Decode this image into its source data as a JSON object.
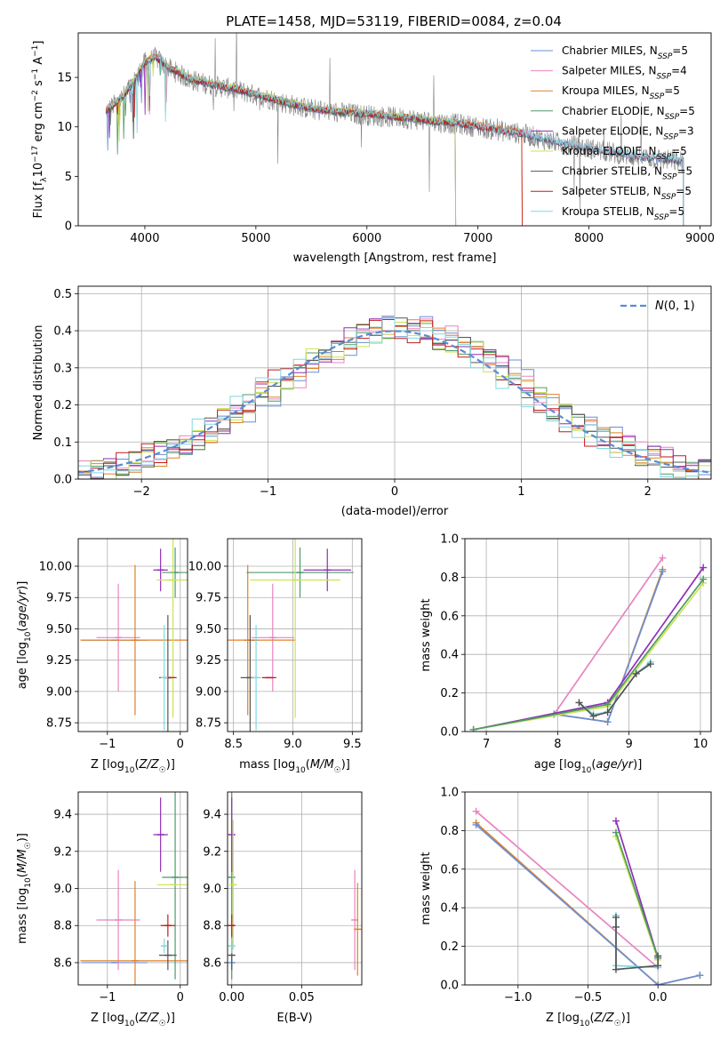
{
  "figure_title": "PLATE=1458, MJD=53119, FIBERID=0084, z=0.04",
  "colors": {
    "chabrier_miles": "#6a8fd6",
    "salpeter_miles": "#e884c0",
    "kroupa_miles": "#e0822a",
    "chabrier_elodie": "#4f9a68",
    "salpeter_elodie": "#8f2fb6",
    "kroupa_elodie": "#c9e451",
    "chabrier_stelib": "#555555",
    "salpeter_stelib": "#c21a1a",
    "kroupa_stelib": "#7fd8e0",
    "data_spectrum": "#808080",
    "normal_curve": "#5b8bd6",
    "grid": "#b0b0b0"
  },
  "legend_models": [
    {
      "key": "chabrier_miles",
      "label": "Chabrier MILES, N",
      "sub": "SSP",
      "suffix": "=5"
    },
    {
      "key": "salpeter_miles",
      "label": "Salpeter MILES, N",
      "sub": "SSP",
      "suffix": "=4"
    },
    {
      "key": "kroupa_miles",
      "label": "Kroupa MILES, N",
      "sub": "SSP",
      "suffix": "=5"
    },
    {
      "key": "chabrier_elodie",
      "label": "Chabrier ELODIE, N",
      "sub": "SSP",
      "suffix": "=5"
    },
    {
      "key": "salpeter_elodie",
      "label": "Salpeter ELODIE, N",
      "sub": "SSP",
      "suffix": "=3"
    },
    {
      "key": "kroupa_elodie",
      "label": "Kroupa ELODIE, N",
      "sub": "SSP",
      "suffix": "=5"
    },
    {
      "key": "chabrier_stelib",
      "label": "Chabrier STELIB, N",
      "sub": "SSP",
      "suffix": "=5"
    },
    {
      "key": "salpeter_stelib",
      "label": "Salpeter STELIB, N",
      "sub": "SSP",
      "suffix": "=5"
    },
    {
      "key": "kroupa_stelib",
      "label": "Kroupa STELIB, N",
      "sub": "SSP",
      "suffix": "=5"
    }
  ],
  "chart_data": [
    {
      "id": "spectrum",
      "type": "line",
      "title": "PLATE=1458, MJD=53119, FIBERID=0084, z=0.04",
      "xlabel": "wavelength [Angstrom, rest frame]",
      "ylabel": "Flux [fλ10⁻¹⁷ erg cm⁻² s⁻¹ A⁻¹]",
      "xlim": [
        3400,
        9100
      ],
      "ylim": [
        0,
        19.5
      ],
      "xticks": [
        4000,
        5000,
        6000,
        7000,
        8000,
        9000
      ],
      "yticks": [
        0,
        5,
        10,
        15
      ],
      "grid": false,
      "legend_position": "top-right",
      "continuum": {
        "x": [
          3650,
          3800,
          3900,
          4000,
          4100,
          4200,
          4400,
          4600,
          4800,
          5000,
          5200,
          5400,
          5600,
          5800,
          6000,
          6200,
          6400,
          6600,
          6800,
          7000,
          7200,
          7400,
          7600,
          7800,
          8000,
          8200,
          8400,
          8600,
          8800
        ],
        "y": [
          11.5,
          13.0,
          14.5,
          16.5,
          17.0,
          16.0,
          14.8,
          14.2,
          13.8,
          13.2,
          12.6,
          12.0,
          11.6,
          11.4,
          11.2,
          11.0,
          10.8,
          10.5,
          10.3,
          10.0,
          9.6,
          9.3,
          8.7,
          8.2,
          7.8,
          7.4,
          7.0,
          6.8,
          6.5
        ]
      },
      "model_end_wavelengths": {
        "kroupa_elodie": 6800,
        "salpeter_stelib": 7400,
        "kroupa_miles": 7400,
        "chabrier_miles": 8850,
        "kroupa_stelib": 8850
      }
    },
    {
      "id": "residuals",
      "type": "histogram",
      "xlabel": "(data-model)/error",
      "ylabel": "Normed distribution",
      "xlim": [
        -2.5,
        2.5
      ],
      "ylim": [
        0,
        0.52
      ],
      "xticks": [
        -2,
        -1,
        0,
        1,
        2
      ],
      "yticks": [
        0.0,
        0.1,
        0.2,
        0.3,
        0.4,
        0.5
      ],
      "grid": true,
      "legend_position": "top-right",
      "legend_label": "N(0, 1)",
      "bin_width": 0.1
    },
    {
      "id": "age_vs_z",
      "type": "scatter",
      "xlabel": "Z [log10(Z/Z☉)]",
      "ylabel": "age [log10(age/yr)]",
      "xlim": [
        -1.4,
        0.1
      ],
      "ylim": [
        8.68,
        10.22
      ],
      "xticks": [
        -1,
        0
      ],
      "yticks": [
        8.75,
        9.0,
        9.25,
        9.5,
        9.75,
        10.0
      ],
      "grid": true,
      "points": [
        {
          "model": "chabrier_miles",
          "x": -0.9,
          "xerr": 0.45,
          "y": 9.41,
          "yerr": 0.0
        },
        {
          "model": "salpeter_miles",
          "x": -0.85,
          "xerr": 0.3,
          "y": 9.43,
          "yerr": 0.43
        },
        {
          "model": "kroupa_miles",
          "x": -0.62,
          "xerr": 0.75,
          "y": 9.41,
          "yerr": 0.6
        },
        {
          "model": "chabrier_elodie",
          "x": -0.07,
          "xerr": 0.18,
          "y": 9.95,
          "yerr": 0.2
        },
        {
          "model": "salpeter_elodie",
          "x": -0.27,
          "xerr": 0.1,
          "y": 9.97,
          "yerr": 0.17
        },
        {
          "model": "kroupa_elodie",
          "x": -0.1,
          "xerr": 0.22,
          "y": 9.89,
          "yerr": 1.1
        },
        {
          "model": "chabrier_stelib",
          "x": -0.17,
          "xerr": 0.12,
          "y": 9.11,
          "yerr": 0.5
        },
        {
          "model": "salpeter_stelib",
          "x": -0.17,
          "xerr": 0.1,
          "y": 9.11,
          "yerr": 0.0
        },
        {
          "model": "kroupa_stelib",
          "x": -0.22,
          "xerr": 0.04,
          "y": 9.11,
          "yerr": 0.42
        }
      ]
    },
    {
      "id": "age_vs_mass",
      "type": "scatter",
      "xlabel": "mass [log10(M/M☉)]",
      "xlim": [
        8.45,
        9.58
      ],
      "ylim": [
        8.68,
        10.22
      ],
      "xticks": [
        8.5,
        9.0,
        9.5
      ],
      "yticks": [
        8.75,
        9.0,
        9.25,
        9.5,
        9.75,
        10.0
      ],
      "grid": true,
      "points": [
        {
          "model": "chabrier_miles",
          "x": 8.65,
          "xerr": 0.06,
          "y": 9.41,
          "yerr": 0.0
        },
        {
          "model": "salpeter_miles",
          "x": 8.83,
          "xerr": 0.18,
          "y": 9.43,
          "yerr": 0.43
        },
        {
          "model": "kroupa_miles",
          "x": 8.62,
          "xerr": 0.4,
          "y": 9.41,
          "yerr": 0.6
        },
        {
          "model": "chabrier_elodie",
          "x": 9.06,
          "xerr": 0.45,
          "y": 9.95,
          "yerr": 0.2
        },
        {
          "model": "salpeter_elodie",
          "x": 9.29,
          "xerr": 0.2,
          "y": 9.97,
          "yerr": 0.17
        },
        {
          "model": "kroupa_elodie",
          "x": 9.02,
          "xerr": 0.38,
          "y": 9.89,
          "yerr": 1.1
        },
        {
          "model": "chabrier_stelib",
          "x": 8.64,
          "xerr": 0.08,
          "y": 9.11,
          "yerr": 0.5
        },
        {
          "model": "salpeter_stelib",
          "x": 8.8,
          "xerr": 0.06,
          "y": 9.11,
          "yerr": 0.0
        },
        {
          "model": "kroupa_stelib",
          "x": 8.69,
          "xerr": 0.04,
          "y": 9.11,
          "yerr": 0.42
        }
      ]
    },
    {
      "id": "mass_weight_vs_age",
      "type": "line",
      "xlabel": "age [log10(age/yr)]",
      "ylabel": "mass weight",
      "xlim": [
        6.7,
        10.15
      ],
      "ylim": [
        0,
        1.0
      ],
      "xticks": [
        7,
        8,
        9,
        10
      ],
      "yticks": [
        0.0,
        0.2,
        0.4,
        0.6,
        0.8,
        1.0
      ],
      "grid": true,
      "series": [
        {
          "model": "salpeter_miles",
          "x": [
            7.95,
            9.47
          ],
          "y": [
            0.09,
            0.9
          ]
        },
        {
          "model": "kroupa_miles",
          "x": [
            7.95,
            8.7,
            9.47
          ],
          "y": [
            0.09,
            0.05,
            0.84
          ]
        },
        {
          "model": "chabrier_miles",
          "x": [
            7.95,
            8.7,
            9.47
          ],
          "y": [
            0.09,
            0.05,
            0.83
          ]
        },
        {
          "model": "salpeter_elodie",
          "x": [
            6.82,
            8.7,
            10.04
          ],
          "y": [
            0.01,
            0.15,
            0.85
          ]
        },
        {
          "model": "kroupa_elodie",
          "x": [
            6.82,
            8.7,
            10.04
          ],
          "y": [
            0.01,
            0.13,
            0.77
          ]
        },
        {
          "model": "chabrier_elodie",
          "x": [
            6.82,
            8.7,
            10.04
          ],
          "y": [
            0.01,
            0.14,
            0.79
          ]
        },
        {
          "model": "kroupa_stelib",
          "x": [
            8.3,
            8.5,
            8.7,
            9.1,
            9.3
          ],
          "y": [
            0.15,
            0.09,
            0.1,
            0.3,
            0.36
          ]
        },
        {
          "model": "chabrier_stelib",
          "x": [
            8.3,
            8.5,
            8.7,
            9.1,
            9.3
          ],
          "y": [
            0.15,
            0.08,
            0.1,
            0.3,
            0.35
          ]
        }
      ]
    },
    {
      "id": "mass_vs_z",
      "type": "scatter",
      "xlabel": "Z [log10(Z/Z☉)]",
      "ylabel": "mass [log10(M/M☉)]",
      "xlim": [
        -1.4,
        0.1
      ],
      "ylim": [
        8.48,
        9.52
      ],
      "xticks": [
        -1,
        0
      ],
      "yticks": [
        8.6,
        8.8,
        9.0,
        9.2,
        9.4
      ],
      "grid": true,
      "points": [
        {
          "model": "chabrier_miles",
          "x": -0.9,
          "xerr": 0.45,
          "y": 8.6,
          "yerr": 0.0
        },
        {
          "model": "salpeter_miles",
          "x": -0.85,
          "xerr": 0.3,
          "y": 8.83,
          "yerr": 0.27
        },
        {
          "model": "kroupa_miles",
          "x": -0.62,
          "xerr": 0.75,
          "y": 8.61,
          "yerr": 0.43
        },
        {
          "model": "chabrier_elodie",
          "x": -0.07,
          "xerr": 0.18,
          "y": 9.06,
          "yerr": 0.55
        },
        {
          "model": "salpeter_elodie",
          "x": -0.27,
          "xerr": 0.1,
          "y": 9.29,
          "yerr": 0.2
        },
        {
          "model": "kroupa_elodie",
          "x": -0.1,
          "xerr": 0.22,
          "y": 9.02,
          "yerr": 0.0
        },
        {
          "model": "chabrier_stelib",
          "x": -0.17,
          "xerr": 0.12,
          "y": 8.64,
          "yerr": 0.08
        },
        {
          "model": "salpeter_stelib",
          "x": -0.17,
          "xerr": 0.1,
          "y": 8.8,
          "yerr": 0.06
        },
        {
          "model": "kroupa_stelib",
          "x": -0.22,
          "xerr": 0.04,
          "y": 8.69,
          "yerr": 0.04
        }
      ]
    },
    {
      "id": "mass_vs_ebv",
      "type": "scatter",
      "xlabel": "E(B-V)",
      "xlim": [
        -0.003,
        0.093
      ],
      "ylim": [
        8.48,
        9.52
      ],
      "xticks": [
        0.0,
        0.05
      ],
      "yticks": [
        8.6,
        8.8,
        9.0,
        9.2,
        9.4
      ],
      "grid": true,
      "points": [
        {
          "model": "chabrier_miles",
          "x": 0.0,
          "y": 8.6,
          "yerr": 0.02
        },
        {
          "model": "salpeter_miles",
          "x": 0.088,
          "y": 8.83,
          "yerr": 0.27
        },
        {
          "model": "kroupa_miles",
          "x": 0.09,
          "y": 8.78,
          "yerr": 0.25
        },
        {
          "model": "chabrier_elodie",
          "x": 0.0,
          "y": 9.06,
          "yerr": 0.55
        },
        {
          "model": "salpeter_elodie",
          "x": 0.0,
          "y": 9.29,
          "yerr": 0.2
        },
        {
          "model": "kroupa_elodie",
          "x": 0.001,
          "y": 9.02,
          "yerr": 0.35
        },
        {
          "model": "chabrier_stelib",
          "x": 0.0,
          "y": 8.64,
          "yerr": 0.08
        },
        {
          "model": "salpeter_stelib",
          "x": 0.0,
          "y": 8.8,
          "yerr": 0.06
        },
        {
          "model": "kroupa_stelib",
          "x": 0.0,
          "y": 8.69,
          "yerr": 0.04
        }
      ]
    },
    {
      "id": "mass_weight_vs_z",
      "type": "line",
      "xlabel": "Z [log10(Z/Z☉)]",
      "ylabel": "mass weight",
      "xlim": [
        -1.38,
        0.38
      ],
      "ylim": [
        0,
        1.0
      ],
      "xticks": [
        -1.0,
        -0.5,
        0.0
      ],
      "yticks": [
        0.0,
        0.2,
        0.4,
        0.6,
        0.8,
        1.0
      ],
      "grid": true,
      "series": [
        {
          "model": "salpeter_miles",
          "x": [
            -1.3,
            0.0
          ],
          "y": [
            0.9,
            0.09
          ]
        },
        {
          "model": "kroupa_miles",
          "x": [
            -1.3,
            0.0,
            0.3
          ],
          "y": [
            0.84,
            0.0,
            0.05
          ]
        },
        {
          "model": "chabrier_miles",
          "x": [
            -1.3,
            0.0,
            0.3
          ],
          "y": [
            0.83,
            0.0,
            0.05
          ]
        },
        {
          "model": "salpeter_elodie",
          "x": [
            -0.3,
            0.0
          ],
          "y": [
            0.85,
            0.14
          ]
        },
        {
          "model": "kroupa_elodie",
          "x": [
            -0.3,
            0.0
          ],
          "y": [
            0.77,
            0.13
          ]
        },
        {
          "model": "chabrier_elodie",
          "x": [
            -0.3,
            0.0
          ],
          "y": [
            0.79,
            0.14
          ]
        },
        {
          "model": "kroupa_stelib",
          "x": [
            -0.3,
            -0.3,
            -0.3,
            0.0,
            0.0
          ],
          "y": [
            0.36,
            0.3,
            0.1,
            0.09,
            0.15
          ]
        },
        {
          "model": "chabrier_stelib",
          "x": [
            -0.3,
            -0.3,
            -0.3,
            0.0,
            0.0
          ],
          "y": [
            0.35,
            0.3,
            0.08,
            0.1,
            0.15
          ]
        }
      ]
    }
  ]
}
